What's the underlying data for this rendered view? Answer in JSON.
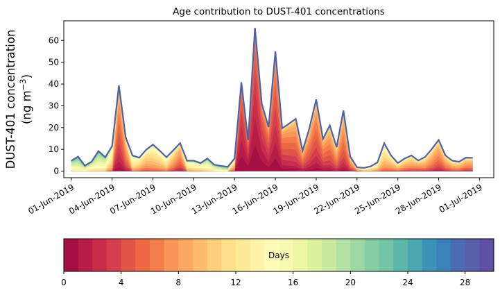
{
  "chart_data": {
    "type": "area",
    "stacked": true,
    "title": "Age contribution to DUST-401 concentrations",
    "xlabel": "",
    "ylabel_line1": "DUST-401 concentration",
    "ylabel_line2": "(ng m",
    "ylabel_sup": "−3",
    "ylabel_close": ")",
    "ylim": [
      -3,
      69
    ],
    "yticks": [
      0,
      10,
      20,
      30,
      40,
      50,
      60
    ],
    "xlim_days": [
      -0.55,
      31.05
    ],
    "xtick_labels": [
      "01-Jun-2019",
      "04-Jun-2019",
      "07-Jun-2019",
      "10-Jun-2019",
      "13-Jun-2019",
      "16-Jun-2019",
      "19-Jun-2019",
      "22-Jun-2019",
      "25-Jun-2019",
      "28-Jun-2019",
      "01-Jul-2019"
    ],
    "xtick_days": [
      0,
      3,
      6,
      9,
      12,
      15,
      18,
      21,
      24,
      27,
      30
    ],
    "time_step_days": 0.5,
    "total": [
      4.8,
      6.7,
      2.5,
      4.4,
      9.2,
      6.4,
      11.5,
      39.3,
      15.5,
      7.2,
      6.2,
      9.8,
      12.2,
      9.4,
      6.4,
      9.6,
      12.9,
      4.8,
      4.8,
      3.7,
      5.8,
      3.0,
      2.4,
      2.0,
      5.8,
      40.8,
      14.3,
      65.7,
      31.0,
      20.2,
      54.9,
      19.7,
      21.8,
      24.0,
      9.4,
      19.7,
      32.9,
      14.8,
      21.0,
      11.0,
      27.8,
      6.7,
      1.8,
      1.5,
      2.2,
      4.0,
      12.8,
      7.2,
      3.7,
      5.8,
      7.2,
      4.9,
      6.5,
      10.2,
      14.3,
      7.2,
      4.8,
      4.3,
      6.2,
      6.1
    ],
    "mean_age_days": [
      17,
      18,
      17,
      16,
      17,
      16,
      12,
      5,
      7,
      13,
      11,
      10,
      11,
      11,
      12,
      9,
      7,
      13,
      14,
      14,
      16,
      17,
      18,
      19,
      10,
      1.5,
      1.5,
      1.2,
      2,
      3.5,
      3,
      4.5,
      5,
      5.5,
      6,
      5.5,
      5,
      5.5,
      6,
      7,
      6,
      7,
      10,
      13,
      13,
      12,
      11,
      10,
      10,
      9,
      9,
      8,
      9,
      8,
      7,
      8,
      9,
      9,
      8,
      8
    ],
    "age_spread_days": 3.2,
    "series_count": 30,
    "colorbar": {
      "label": "Days",
      "range": [
        0,
        30
      ],
      "ticks": [
        0,
        4,
        8,
        12,
        16,
        20,
        24,
        28
      ],
      "colors": [
        "#a50f43",
        "#b71c47",
        "#c72c48",
        "#d53e4f",
        "#e05546",
        "#eb6843",
        "#f47d4d",
        "#f89557",
        "#fba962",
        "#fdbb6d",
        "#fece7b",
        "#fee08b",
        "#fee997",
        "#fff3a9",
        "#fffcb8",
        "#f6fbb2",
        "#ebf7a5",
        "#dbf19c",
        "#c8e9a0",
        "#b3e0a3",
        "#9dd7a4",
        "#84cda5",
        "#72c5a6",
        "#5db7a9",
        "#4aa8b0",
        "#3b93b8",
        "#3b81b9",
        "#4a6db1",
        "#5a5fa9",
        "#5e4fa2"
      ]
    }
  }
}
